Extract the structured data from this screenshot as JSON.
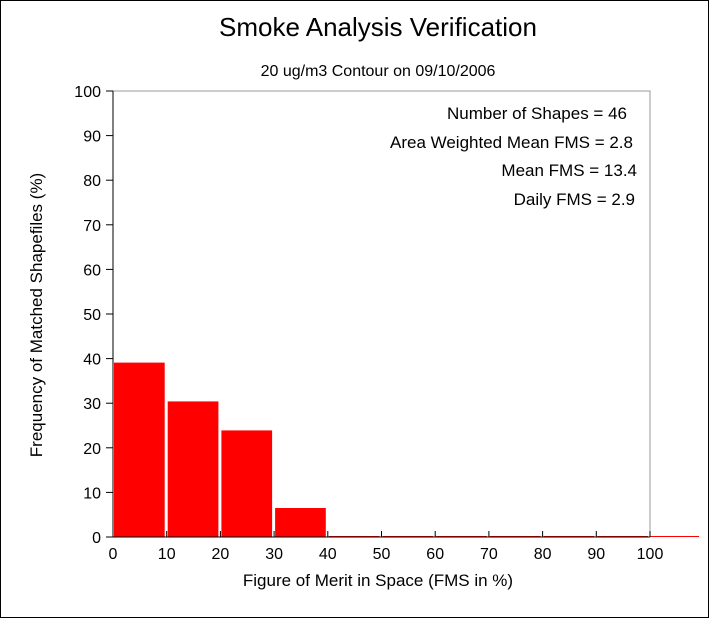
{
  "chart_data": {
    "type": "bar",
    "title": "Smoke Analysis Verification",
    "subtitle": "20 ug/m3 Contour on 09/10/2006",
    "xlabel": "Figure of Merit in Space (FMS in %)",
    "ylabel": "Frequency of Matched Shapefiles (%)",
    "xlim": [
      0,
      100
    ],
    "ylim": [
      0,
      100
    ],
    "xticks": [
      "0",
      "10",
      "20",
      "30",
      "40",
      "50",
      "60",
      "70",
      "80",
      "90",
      "100"
    ],
    "yticks": [
      "0",
      "10",
      "20",
      "30",
      "40",
      "50",
      "60",
      "70",
      "80",
      "90",
      "100"
    ],
    "bins": [
      {
        "from": 0,
        "to": 10,
        "value": 39.1
      },
      {
        "from": 10,
        "to": 20,
        "value": 30.4
      },
      {
        "from": 20,
        "to": 30,
        "value": 23.9
      },
      {
        "from": 30,
        "to": 40,
        "value": 6.5
      },
      {
        "from": 40,
        "to": 50,
        "value": 0
      },
      {
        "from": 50,
        "to": 60,
        "value": 0
      },
      {
        "from": 60,
        "to": 70,
        "value": 0
      },
      {
        "from": 70,
        "to": 80,
        "value": 0
      },
      {
        "from": 80,
        "to": 90,
        "value": 0
      },
      {
        "from": 90,
        "to": 100,
        "value": 0
      }
    ],
    "bar_color": "#ff0000",
    "annotations": [
      "Number of Shapes = 46",
      "Area Weighted Mean FMS = 2.8",
      "Mean FMS = 13.4",
      "Daily FMS = 2.9"
    ],
    "grid": false
  }
}
